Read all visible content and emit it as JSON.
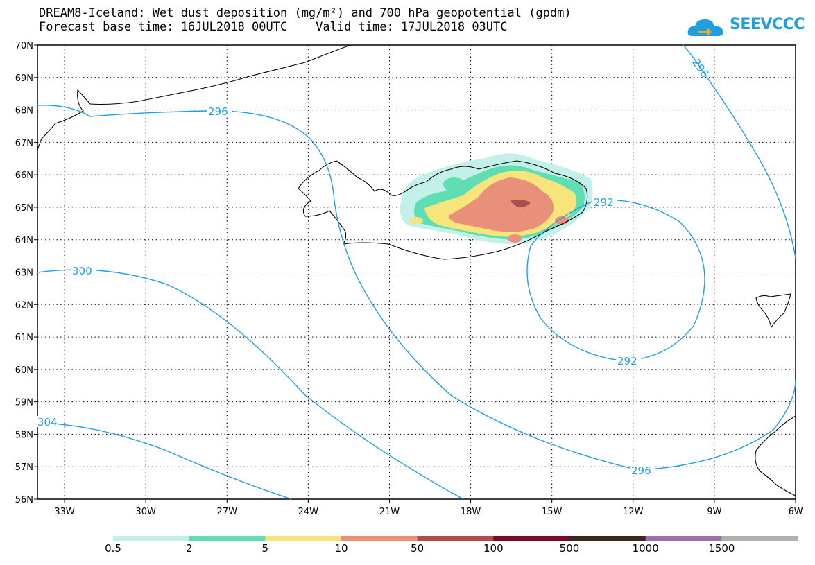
{
  "title": {
    "line1": "DREAM8-Iceland: Wet dust deposition (mg/m²) and 700 hPa geopotential (gpdm)",
    "line2": "Forecast base time: 16JUL2018 00UTC    Valid time: 17JUL2018 03UTC"
  },
  "logo": {
    "text": "SEEVCCC",
    "color": "#1e9fe0"
  },
  "map": {
    "lon_range": [
      -34,
      -6
    ],
    "lat_range": [
      56,
      70
    ],
    "lon_ticks": [
      "33W",
      "30W",
      "27W",
      "24W",
      "21W",
      "18W",
      "15W",
      "12W",
      "9W",
      "6W"
    ],
    "lat_ticks": [
      "70N",
      "69N",
      "68N",
      "67N",
      "66N",
      "65N",
      "64N",
      "63N",
      "62N",
      "61N",
      "60N",
      "59N",
      "58N",
      "57N",
      "56N"
    ],
    "grid": "dotted",
    "contour_color": "#1ea0e6",
    "contour_labels": [
      "296",
      "292",
      "300",
      "304",
      "292",
      "296",
      "296"
    ]
  },
  "colorbar": {
    "labels": [
      "0.5",
      "2",
      "5",
      "10",
      "50",
      "100",
      "500",
      "1000",
      "1500"
    ],
    "colors": [
      "#c4f0ea",
      "#5fdeb4",
      "#f7e47a",
      "#e8907a",
      "#a85050",
      "#7a0a2a",
      "#3a2a1e",
      "#9a70a8",
      "#b0b0b0"
    ]
  }
}
